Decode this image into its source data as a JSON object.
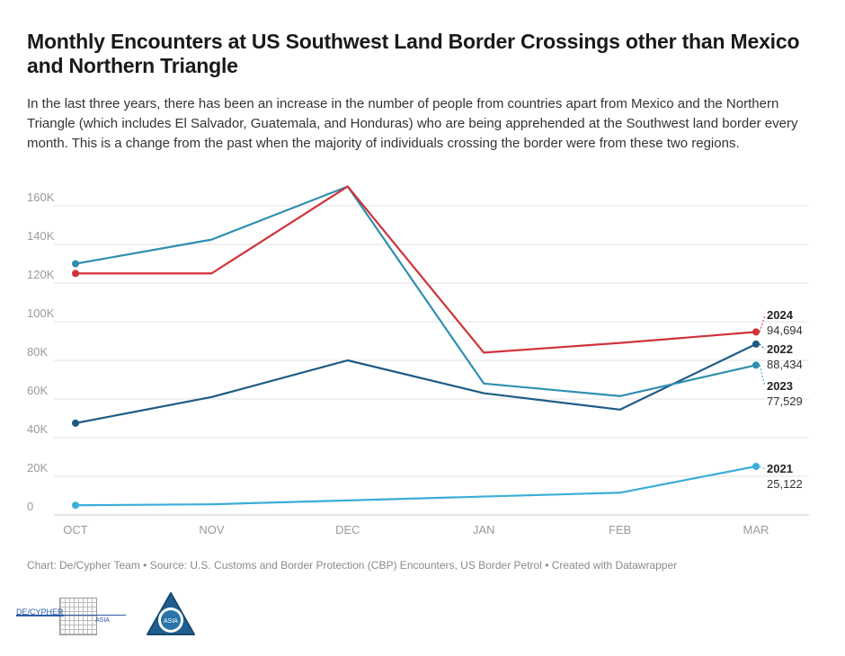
{
  "title": "Monthly Encounters at US Southwest Land Border Crossings other than Mexico and Northern Triangle",
  "subtitle": "In the last three years, there has been an increase in the number of people from countries apart from Mexico and the Northern Triangle (which includes El Salvador, Guatemala, and Honduras) who are being apprehended at the Southwest land border every month. This is a change from the past when the majority of individuals crossing the border were from these two regions.",
  "source": "Chart: De/Cypher Team • Source: U.S. Customs and Border Protection (CBP) Encounters, US Border Petrol • Created with Datawrapper",
  "logos": {
    "left_text": "DE/CYPHER",
    "left_sub": "ASIA",
    "right_text": "ASIA"
  },
  "colors": {
    "2024": "#d0333a",
    "2023": "#2f8fb0",
    "2022": "#1d5b85",
    "2021": "#3aaed8",
    "grid": "#e2e2e2",
    "tick": "#9a9a9a"
  },
  "chart_data": {
    "type": "line",
    "title": "Monthly Encounters at US Southwest Land Border Crossings other than Mexico and Northern Triangle",
    "categories": [
      "OCT",
      "NOV",
      "DEC",
      "JAN",
      "FEB",
      "MAR"
    ],
    "ylim": [
      0,
      170000
    ],
    "yticks": [
      0,
      20000,
      40000,
      60000,
      80000,
      100000,
      120000,
      140000,
      160000
    ],
    "ytick_labels": [
      "0",
      "20K",
      "40K",
      "60K",
      "80K",
      "100K",
      "120K",
      "140K",
      "160K"
    ],
    "grid": true,
    "series": [
      {
        "name": "2024",
        "values": [
          125000,
          125000,
          170000,
          84000,
          89000,
          94694
        ],
        "end_label": "94,694"
      },
      {
        "name": "2023",
        "values": [
          130000,
          142500,
          170000,
          68000,
          61500,
          77529
        ],
        "end_label": "77,529"
      },
      {
        "name": "2022",
        "values": [
          47500,
          61000,
          80000,
          63000,
          54500,
          88434
        ],
        "end_label": "88,434"
      },
      {
        "name": "2021",
        "values": [
          5000,
          5500,
          7500,
          9500,
          11500,
          25122
        ],
        "end_label": "25,122"
      }
    ]
  }
}
